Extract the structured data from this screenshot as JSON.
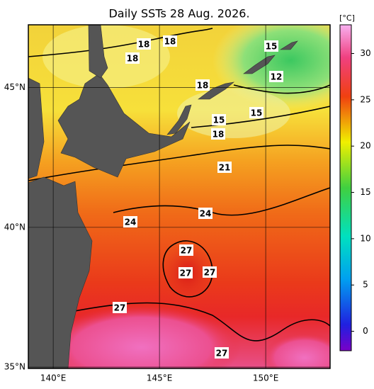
{
  "title": "Daily SSTs 28 Aug. 2026.",
  "map": {
    "lon_range": [
      138.83,
      153.03
    ],
    "lat_range": [
      34.95,
      47.25
    ],
    "lon_ticks": [
      {
        "value": 140,
        "label": "140°E"
      },
      {
        "value": 145,
        "label": "145°E"
      },
      {
        "value": 150,
        "label": "150°E"
      }
    ],
    "lat_ticks": [
      {
        "value": 35,
        "label": "35°N"
      },
      {
        "value": 40,
        "label": "40°N"
      },
      {
        "value": 45,
        "label": "45°N"
      }
    ]
  },
  "colorbar": {
    "unit": "[°C]",
    "range": [
      -2.1,
      33.1
    ],
    "ticks": [
      0,
      5,
      10,
      15,
      20,
      25,
      30
    ]
  },
  "contour_labels": [
    "18",
    "18",
    "18",
    "15",
    "12",
    "18",
    "15",
    "15",
    "18",
    "21",
    "24",
    "24",
    "27",
    "27",
    "27",
    "27",
    "27"
  ]
}
